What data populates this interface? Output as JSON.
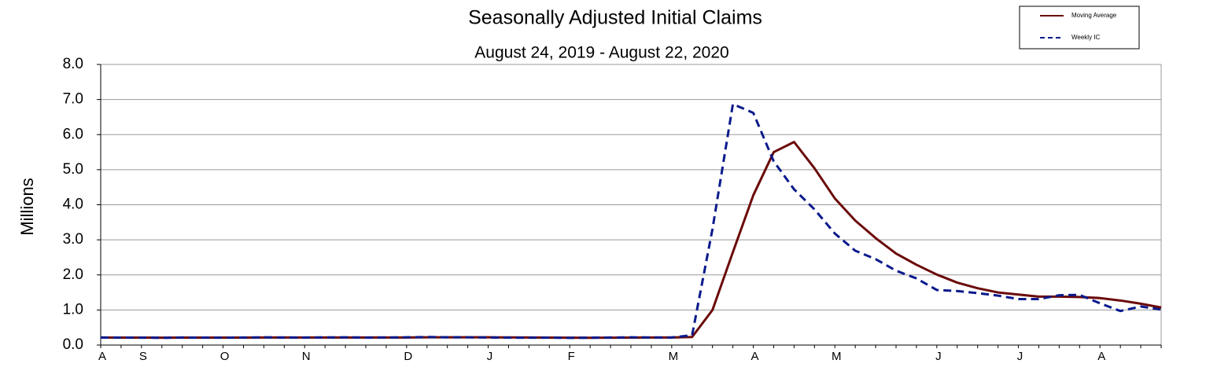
{
  "chart_data": {
    "type": "line",
    "title": "Seasonally Adjusted Initial Claims",
    "subtitle": "August 24, 2019 - August 22, 2020",
    "y_label": "Millions",
    "categories": [
      "A",
      null,
      "S",
      null,
      null,
      null,
      "O",
      null,
      null,
      null,
      "N",
      null,
      null,
      null,
      null,
      "D",
      null,
      null,
      null,
      "J",
      null,
      null,
      null,
      "F",
      null,
      null,
      null,
      null,
      "M",
      null,
      null,
      null,
      "A",
      null,
      null,
      null,
      "M",
      null,
      null,
      null,
      null,
      "J",
      null,
      null,
      null,
      "J",
      null,
      null,
      null,
      "A",
      null,
      null,
      null
    ],
    "series": [
      {
        "name": "Moving Average",
        "color": "#6b0a0a",
        "dash": false,
        "values": [
          0.215,
          0.214,
          0.212,
          0.211,
          0.212,
          0.213,
          0.212,
          0.213,
          0.215,
          0.217,
          0.216,
          0.216,
          0.217,
          0.217,
          0.216,
          0.217,
          0.22,
          0.222,
          0.222,
          0.221,
          0.218,
          0.215,
          0.212,
          0.21,
          0.208,
          0.21,
          0.213,
          0.215,
          0.217,
          0.23,
          1.0,
          2.65,
          4.27,
          5.5,
          5.79,
          5.04,
          4.18,
          3.55,
          3.05,
          2.61,
          2.29,
          2.01,
          1.78,
          1.62,
          1.5,
          1.44,
          1.38,
          1.38,
          1.37,
          1.34,
          1.27,
          1.18,
          1.07
        ]
      },
      {
        "name": "Weekly IC",
        "color": "#0a1a8c",
        "dash": true,
        "values": [
          0.215,
          0.213,
          0.21,
          0.208,
          0.215,
          0.212,
          0.21,
          0.215,
          0.22,
          0.215,
          0.213,
          0.218,
          0.22,
          0.214,
          0.215,
          0.22,
          0.23,
          0.222,
          0.22,
          0.215,
          0.212,
          0.21,
          0.212,
          0.205,
          0.21,
          0.215,
          0.22,
          0.215,
          0.217,
          0.28,
          3.31,
          6.87,
          6.62,
          5.24,
          4.44,
          3.87,
          3.18,
          2.69,
          2.45,
          2.12,
          1.9,
          1.57,
          1.54,
          1.48,
          1.41,
          1.31,
          1.31,
          1.42,
          1.43,
          1.19,
          0.97,
          1.1,
          1.01
        ]
      }
    ],
    "ylim": [
      0,
      8
    ],
    "yticks": [
      {
        "value": 0,
        "label": "0.0"
      },
      {
        "value": 1,
        "label": "1.0"
      },
      {
        "value": 2,
        "label": "2.0"
      },
      {
        "value": 3,
        "label": "3.0"
      },
      {
        "value": 4,
        "label": "4.0"
      },
      {
        "value": 5,
        "label": "5.0"
      },
      {
        "value": 6,
        "label": "6.0"
      },
      {
        "value": 7,
        "label": "7.0"
      },
      {
        "value": 8,
        "label": "8.0"
      }
    ],
    "grid": true,
    "legend": "upper right"
  }
}
